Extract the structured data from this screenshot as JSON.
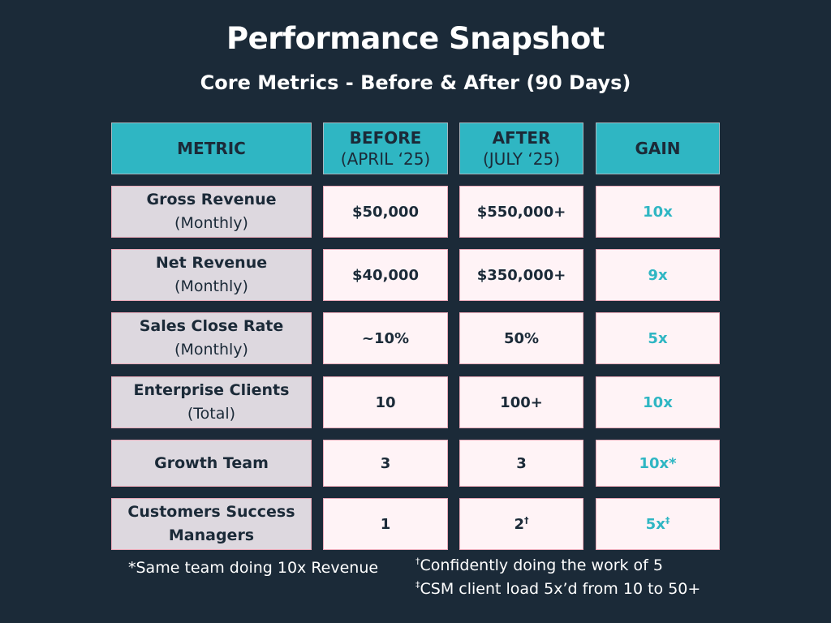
{
  "title": "Performance Snapshot",
  "subtitle": "Core Metrics - Before & After (90 Days)",
  "header": {
    "metric": "METRIC",
    "before": "BEFORE",
    "before_sub": "(APRIL ‘25)",
    "after": "AFTER",
    "after_sub": "(JULY ‘25)",
    "gain": "GAIN"
  },
  "rows": [
    {
      "metric": "Gross Revenue",
      "sub": "(Monthly)",
      "before": "$50,000",
      "after": "$550,000+",
      "after_mark": "",
      "gain": "10x",
      "gain_mark": ""
    },
    {
      "metric": "Net Revenue",
      "sub": "(Monthly)",
      "before": "$40,000",
      "after": "$350,000+",
      "after_mark": "",
      "gain": "9x",
      "gain_mark": ""
    },
    {
      "metric": "Sales Close Rate",
      "sub": "(Monthly)",
      "before": "~10%",
      "after": "50%",
      "after_mark": "",
      "gain": "5x",
      "gain_mark": ""
    },
    {
      "metric": "Enterprise Clients",
      "sub": "(Total)",
      "before": "10",
      "after": "100+",
      "after_mark": "",
      "gain": "10x",
      "gain_mark": ""
    },
    {
      "metric": "Growth Team",
      "sub": "",
      "before": "3",
      "after": "3",
      "after_mark": "",
      "gain": "10x*",
      "gain_mark": ""
    },
    {
      "metric": "Customers Success",
      "sub": "Managers",
      "before": "1",
      "after": "2",
      "after_mark": "†",
      "gain": "5x",
      "gain_mark": "‡"
    }
  ],
  "footnotes": {
    "star": "*Same team doing 10x Revenue",
    "dagger_mark": "†",
    "dagger": "Confidently doing the work of 5",
    "ddagger_mark": "‡",
    "ddagger": "CSM client load 5x’d from 10 to 50+"
  },
  "colors": {
    "background": "#1b2a38",
    "accent": "#2fb6c3",
    "metric_cell": "#ddd8df",
    "value_cell": "#fff3f6"
  }
}
